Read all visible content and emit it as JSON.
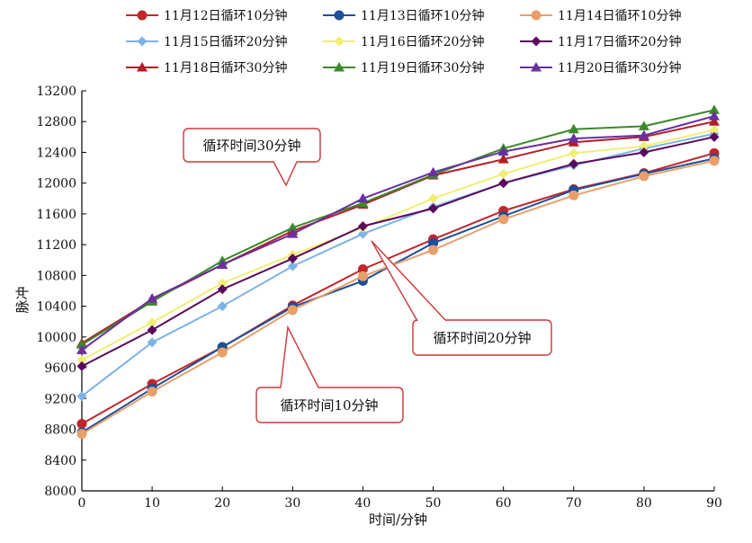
{
  "chart_data": {
    "type": "line",
    "xlabel": "时间/分钟",
    "ylabel": "脉冲",
    "xlim": [
      0,
      90
    ],
    "ylim": [
      8000,
      13200
    ],
    "x_ticks": [
      0,
      10,
      20,
      30,
      40,
      50,
      60,
      70,
      80,
      90
    ],
    "y_ticks": [
      8000,
      8400,
      8800,
      9200,
      9600,
      10000,
      10400,
      10800,
      11200,
      11600,
      12000,
      12400,
      12800,
      13200
    ],
    "x": [
      0,
      10,
      20,
      30,
      40,
      50,
      60,
      70,
      80,
      90
    ],
    "grid": false,
    "legend_placement": "top",
    "series": [
      {
        "name": "11月12日循环10分钟",
        "color": "#c0282d",
        "marker": "circle",
        "values": [
          8870,
          9390,
          9870,
          10410,
          10880,
          11270,
          11640,
          11920,
          12130,
          12390
        ]
      },
      {
        "name": "11月13日循环10分钟",
        "color": "#1f4e9a",
        "marker": "circle",
        "values": [
          8760,
          9330,
          9870,
          10390,
          10730,
          11220,
          11570,
          11910,
          12120,
          12320
        ]
      },
      {
        "name": "11月14日循环10分钟",
        "color": "#e8a06b",
        "marker": "circle",
        "values": [
          8740,
          9290,
          9800,
          10350,
          10790,
          11130,
          11530,
          11840,
          12090,
          12290
        ]
      },
      {
        "name": "11月15日循环20分钟",
        "color": "#7db3e8",
        "marker": "diamond",
        "values": [
          9230,
          9930,
          10400,
          10920,
          11340,
          11690,
          12000,
          12230,
          12450,
          12640
        ]
      },
      {
        "name": "11月16日循环20分钟",
        "color": "#f1ee74",
        "marker": "diamond",
        "values": [
          9700,
          10190,
          10700,
          11070,
          11420,
          11800,
          12120,
          12390,
          12480,
          12690
        ]
      },
      {
        "name": "11月17日循环20分钟",
        "color": "#5a0a5c",
        "marker": "diamond",
        "values": [
          9620,
          10090,
          10620,
          11020,
          11440,
          11670,
          12000,
          12250,
          12400,
          12600
        ]
      },
      {
        "name": "11月18日循环30分钟",
        "color": "#b01f24",
        "marker": "triangle",
        "values": [
          9920,
          10480,
          10940,
          11380,
          11720,
          12100,
          12310,
          12530,
          12600,
          12800
        ]
      },
      {
        "name": "11月19日循环30分钟",
        "color": "#3b8a2a",
        "marker": "triangle",
        "values": [
          9900,
          10460,
          10990,
          11420,
          11740,
          12110,
          12450,
          12700,
          12740,
          12950
        ]
      },
      {
        "name": "11月20日循环30分钟",
        "color": "#6a2fa0",
        "marker": "triangle",
        "values": [
          9830,
          10500,
          10940,
          11340,
          11800,
          12140,
          12410,
          12580,
          12620,
          12870
        ]
      }
    ],
    "annotations": [
      "循环时间30分钟",
      "循环时间20分钟",
      "循环时间10分钟"
    ]
  }
}
